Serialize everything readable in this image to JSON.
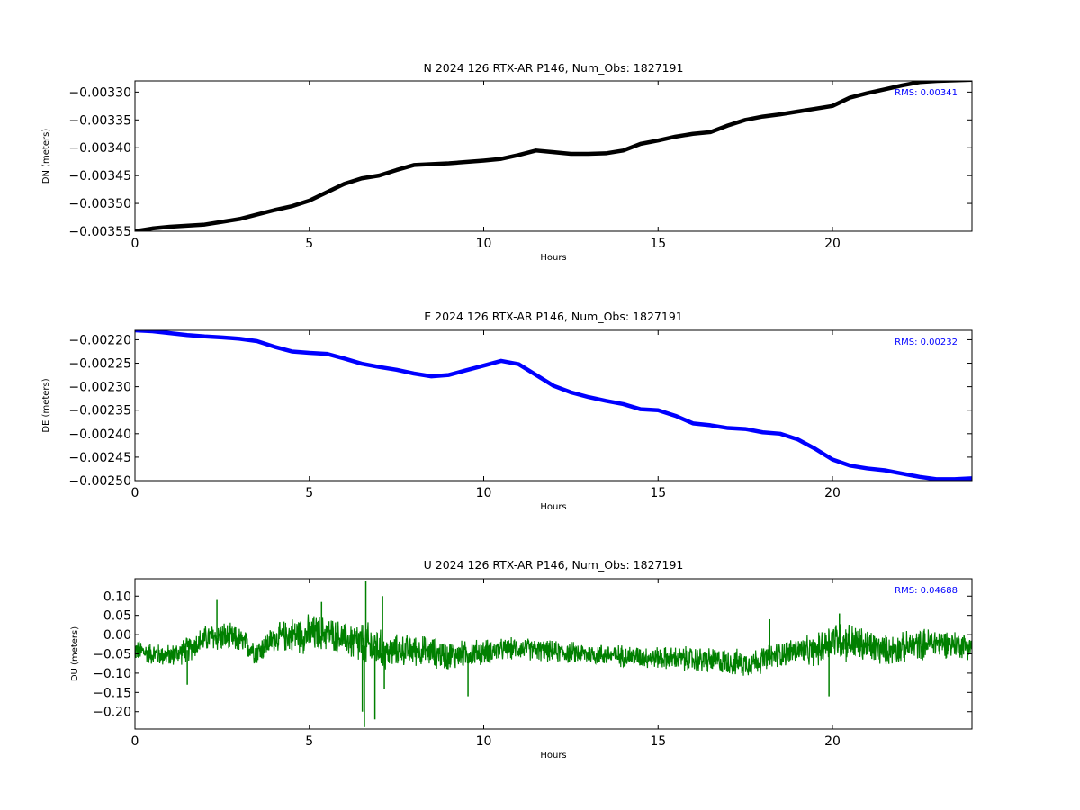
{
  "chart_data": [
    {
      "type": "line",
      "title": "N 2024 126 RTX-AR  P146, Num_Obs: 1827191",
      "xlabel": "Hours",
      "ylabel": "DN (meters)",
      "xlim": [
        0,
        24
      ],
      "ylim": [
        -0.00355,
        -0.00328
      ],
      "xticks": [
        0,
        5,
        10,
        15,
        20
      ],
      "yticks": [
        -0.0033,
        -0.00335,
        -0.0034,
        -0.00345,
        -0.0035,
        -0.00355
      ],
      "ytick_labels": [
        "−0.00330",
        "−0.00335",
        "−0.00340",
        "−0.00345",
        "−0.00350",
        "−0.00355"
      ],
      "annotation": "RMS:  0.00341",
      "annotation_color": "#0000ff",
      "grid": false,
      "series": [
        {
          "color": "#000000",
          "x": [
            0,
            0.5,
            1,
            2,
            2.5,
            3,
            3.5,
            4,
            4.5,
            5,
            5.5,
            6,
            6.5,
            7,
            7.5,
            8,
            9,
            10,
            10.5,
            11,
            11.5,
            12,
            12.5,
            13,
            13.5,
            14,
            14.5,
            15,
            15.5,
            16,
            16.5,
            17,
            17.5,
            18,
            18.5,
            19,
            19.5,
            20,
            20.5,
            21,
            21.5,
            22,
            22.5,
            23,
            23.5,
            24
          ],
          "y": [
            -0.00355,
            -0.003545,
            -0.003542,
            -0.003538,
            -0.003533,
            -0.003528,
            -0.00352,
            -0.003512,
            -0.003505,
            -0.003495,
            -0.00348,
            -0.003465,
            -0.003455,
            -0.00345,
            -0.00344,
            -0.003431,
            -0.003428,
            -0.003423,
            -0.00342,
            -0.003413,
            -0.003405,
            -0.003408,
            -0.003411,
            -0.003411,
            -0.00341,
            -0.003405,
            -0.003393,
            -0.003387,
            -0.00338,
            -0.003375,
            -0.003372,
            -0.00336,
            -0.00335,
            -0.003344,
            -0.00334,
            -0.003335,
            -0.00333,
            -0.003325,
            -0.00331,
            -0.003302,
            -0.003295,
            -0.003288,
            -0.003282,
            -0.00328,
            -0.003279,
            -0.003278
          ]
        }
      ]
    },
    {
      "type": "line",
      "title": "E 2024 126 RTX-AR  P146, Num_Obs: 1827191",
      "xlabel": "Hours",
      "ylabel": "DE (meters)",
      "xlim": [
        0,
        24
      ],
      "ylim": [
        -0.0025,
        -0.00218
      ],
      "xticks": [
        0,
        5,
        10,
        15,
        20
      ],
      "yticks": [
        -0.0022,
        -0.00225,
        -0.0023,
        -0.00235,
        -0.0024,
        -0.00245,
        -0.0025
      ],
      "ytick_labels": [
        "−0.00220",
        "−0.00225",
        "−0.00230",
        "−0.00235",
        "−0.00240",
        "−0.00245",
        "−0.00250"
      ],
      "annotation": "RMS:  0.00232",
      "annotation_color": "#0000ff",
      "grid": false,
      "series": [
        {
          "color": "#0000ff",
          "x": [
            0,
            0.5,
            1,
            1.5,
            2,
            2.5,
            3,
            3.5,
            4,
            4.5,
            5,
            5.5,
            6,
            6.5,
            7,
            7.5,
            8,
            8.5,
            9,
            9.5,
            10,
            10.5,
            11,
            11.5,
            12,
            12.5,
            13,
            13.5,
            14,
            14.5,
            15,
            15.5,
            16,
            16.5,
            17,
            17.5,
            18,
            18.5,
            19,
            19.5,
            20,
            20.5,
            21,
            21.5,
            22,
            22.5,
            23,
            23.5,
            24
          ],
          "y": [
            -0.00218,
            -0.002182,
            -0.002186,
            -0.00219,
            -0.002193,
            -0.002195,
            -0.002198,
            -0.002203,
            -0.002215,
            -0.002225,
            -0.002228,
            -0.00223,
            -0.00224,
            -0.002251,
            -0.002258,
            -0.002264,
            -0.002272,
            -0.002278,
            -0.002275,
            -0.002265,
            -0.002255,
            -0.002245,
            -0.002252,
            -0.002275,
            -0.002298,
            -0.002312,
            -0.002322,
            -0.00233,
            -0.002337,
            -0.002348,
            -0.00235,
            -0.002362,
            -0.002378,
            -0.002382,
            -0.002388,
            -0.00239,
            -0.002397,
            -0.0024,
            -0.002412,
            -0.002432,
            -0.002455,
            -0.002468,
            -0.002474,
            -0.002478,
            -0.002485,
            -0.002492,
            -0.002497,
            -0.002497,
            -0.002495
          ]
        }
      ]
    },
    {
      "type": "line",
      "title": "U 2024 126 RTX-AR  P146, Num_Obs: 1827191",
      "xlabel": "Hours",
      "ylabel": "DU (meters)",
      "xlim": [
        0,
        24
      ],
      "ylim": [
        -0.245,
        0.145
      ],
      "xticks": [
        0,
        5,
        10,
        15,
        20
      ],
      "yticks": [
        0.1,
        0.05,
        0.0,
        -0.05,
        -0.1,
        -0.15,
        -0.2
      ],
      "ytick_labels": [
        "0.10",
        "0.05",
        "0.00",
        "−0.05",
        "−0.10",
        "−0.15",
        "−0.20"
      ],
      "annotation": "RMS:  0.04688",
      "annotation_color": "#0000ff",
      "grid": false,
      "series": [
        {
          "color": "#008000",
          "noisy": true,
          "x": [
            0,
            0.5,
            1,
            1.5,
            2,
            2.5,
            3,
            3.5,
            4,
            4.5,
            5,
            5.5,
            6,
            6.3,
            6.6,
            6.9,
            7.2,
            7.5,
            8,
            8.5,
            9,
            9.5,
            10,
            10.5,
            11,
            11.5,
            12,
            13,
            14,
            15,
            16,
            17,
            17.5,
            18,
            18.5,
            19,
            19.5,
            20,
            20.5,
            21,
            21.5,
            22,
            22.5,
            23,
            23.5,
            24
          ],
          "y": [
            -0.04,
            -0.05,
            -0.055,
            -0.04,
            -0.01,
            -0.005,
            -0.015,
            -0.045,
            -0.01,
            0.0,
            0.0,
            0.005,
            -0.01,
            -0.02,
            -0.03,
            -0.03,
            -0.05,
            -0.04,
            -0.04,
            -0.045,
            -0.055,
            -0.05,
            -0.045,
            -0.04,
            -0.035,
            -0.04,
            -0.045,
            -0.05,
            -0.055,
            -0.06,
            -0.065,
            -0.07,
            -0.075,
            -0.065,
            -0.05,
            -0.04,
            -0.045,
            -0.01,
            -0.02,
            -0.03,
            -0.04,
            -0.035,
            -0.025,
            -0.02,
            -0.025,
            -0.03
          ],
          "spread": [
            0.025,
            0.025,
            0.025,
            0.03,
            0.03,
            0.035,
            0.03,
            0.03,
            0.03,
            0.04,
            0.045,
            0.04,
            0.035,
            0.05,
            0.055,
            0.05,
            0.04,
            0.035,
            0.035,
            0.035,
            0.035,
            0.03,
            0.03,
            0.025,
            0.025,
            0.025,
            0.025,
            0.025,
            0.025,
            0.025,
            0.03,
            0.03,
            0.03,
            0.03,
            0.03,
            0.03,
            0.035,
            0.045,
            0.045,
            0.04,
            0.035,
            0.035,
            0.035,
            0.035,
            0.03,
            0.03
          ],
          "peaks": [
            {
              "x": 6.52,
              "y": -0.2
            },
            {
              "x": 6.58,
              "y": -0.24
            },
            {
              "x": 6.62,
              "y": 0.14
            },
            {
              "x": 6.88,
              "y": -0.22
            },
            {
              "x": 7.1,
              "y": 0.1
            },
            {
              "x": 7.15,
              "y": -0.14
            },
            {
              "x": 5.35,
              "y": 0.085
            },
            {
              "x": 2.35,
              "y": 0.09
            },
            {
              "x": 1.5,
              "y": -0.13
            },
            {
              "x": 9.55,
              "y": -0.16
            },
            {
              "x": 18.2,
              "y": 0.04
            },
            {
              "x": 19.9,
              "y": -0.16
            },
            {
              "x": 20.2,
              "y": 0.055
            }
          ]
        }
      ]
    }
  ]
}
